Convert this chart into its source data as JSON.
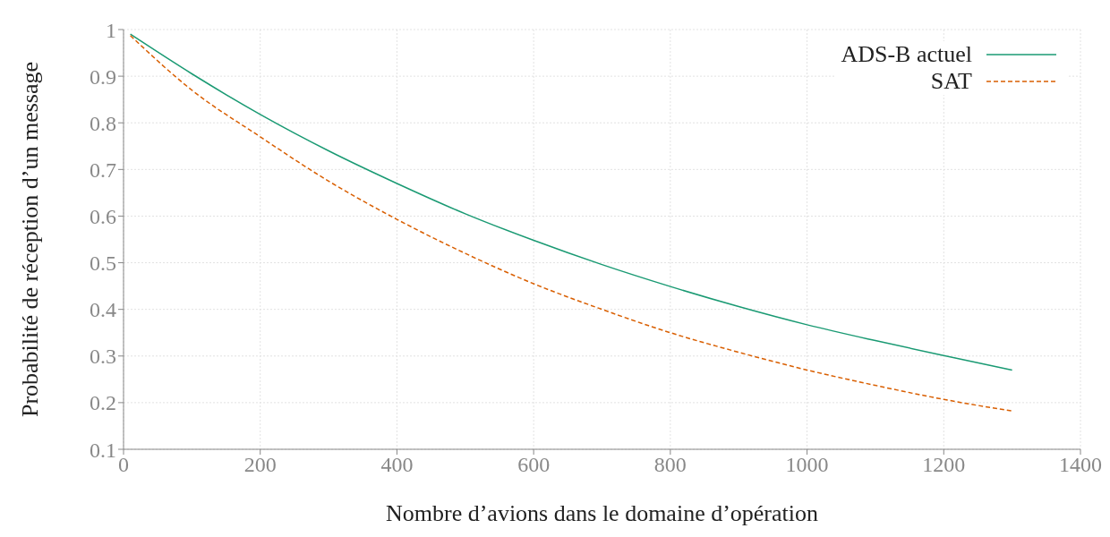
{
  "chart_data": {
    "type": "line",
    "xlabel": "Nombre d’avions dans le domaine d’opération",
    "ylabel": "Probabilité de réception d’un message",
    "x": [
      10,
      100,
      200,
      300,
      400,
      500,
      600,
      700,
      800,
      900,
      1000,
      1100,
      1200,
      1300
    ],
    "series": [
      {
        "name": "ADS-B actuel",
        "color": "#1a9a73",
        "line_style": "solid",
        "values": [
          0.99,
          0.905,
          0.818,
          0.74,
          0.67,
          0.605,
          0.548,
          0.496,
          0.449,
          0.406,
          0.367,
          0.333,
          0.301,
          0.27
        ]
      },
      {
        "name": "SAT",
        "color": "#d95f02",
        "line_style": "dashed",
        "values": [
          0.987,
          0.87,
          0.77,
          0.675,
          0.593,
          0.52,
          0.455,
          0.4,
          0.35,
          0.308,
          0.27,
          0.237,
          0.207,
          0.182
        ]
      }
    ],
    "xlim": [
      0,
      1400
    ],
    "xticks": [
      0,
      200,
      400,
      600,
      800,
      1000,
      1200,
      1400
    ],
    "ylim": [
      0.1,
      1
    ],
    "yticks": [
      0.1,
      0.2,
      0.3,
      0.4,
      0.5,
      0.6,
      0.7,
      0.8,
      0.9,
      1
    ],
    "grid": true,
    "legend": "top right",
    "marker": "none"
  }
}
